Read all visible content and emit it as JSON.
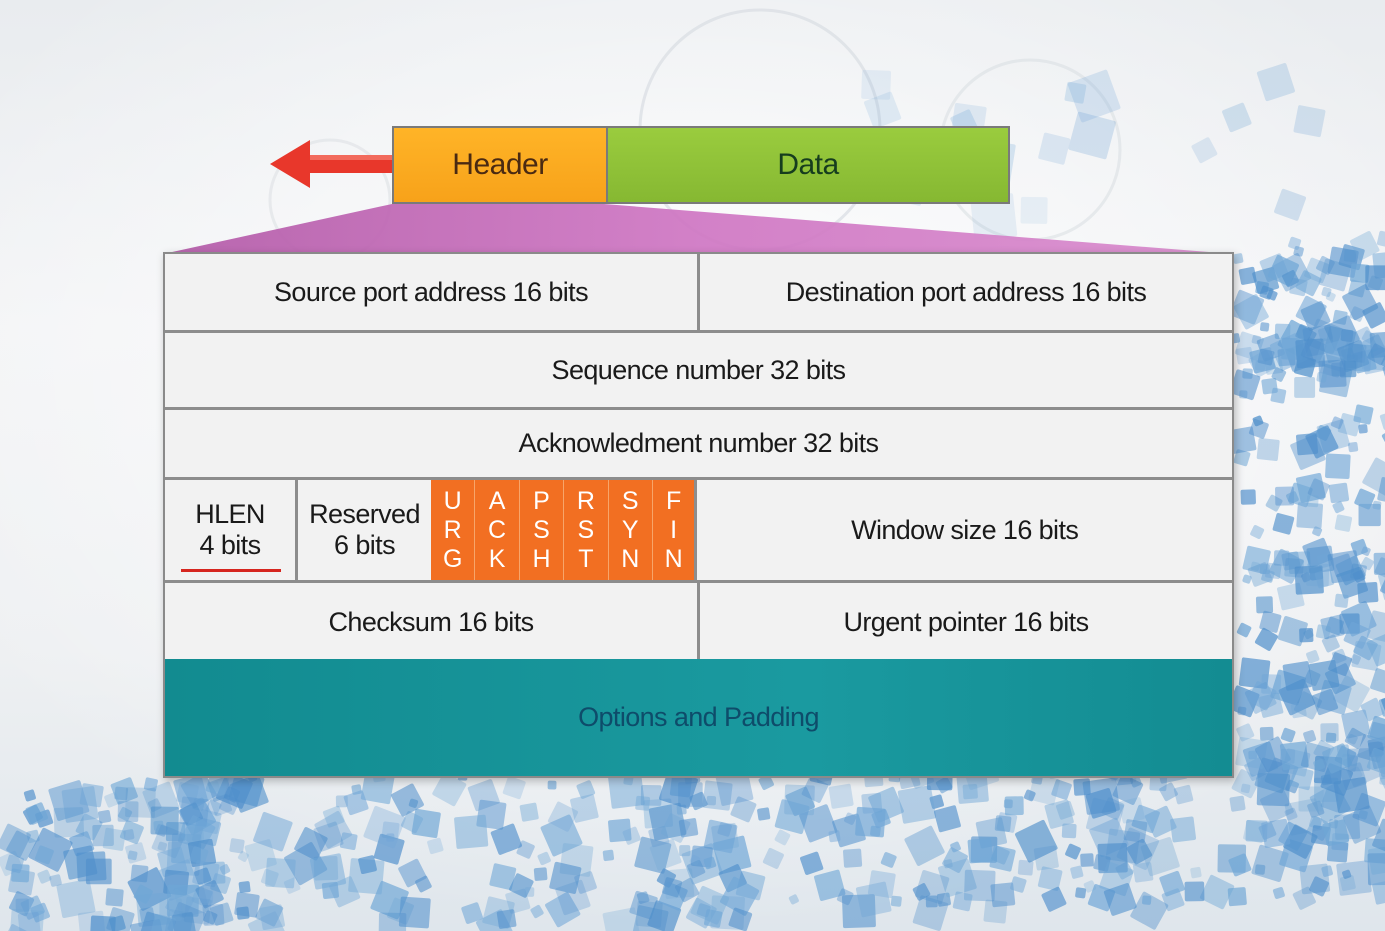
{
  "packet": {
    "header_label": "Header",
    "data_label": "Data"
  },
  "tcp_header": {
    "source_port": "Source port address 16 bits",
    "destination_port": "Destination port address 16 bits",
    "sequence_number": "Sequence number 32 bits",
    "acknowledgment_number": "Acknowledment number 32 bits",
    "hlen": {
      "line1": "HLEN",
      "line2": "4 bits"
    },
    "reserved": {
      "line1": "Reserved",
      "line2": "6 bits"
    },
    "flags": [
      [
        "U",
        "R",
        "G"
      ],
      [
        "A",
        "C",
        "K"
      ],
      [
        "P",
        "S",
        "H"
      ],
      [
        "R",
        "S",
        "T"
      ],
      [
        "S",
        "Y",
        "N"
      ],
      [
        "F",
        "I",
        "N"
      ]
    ],
    "window_size": "Window size 16 bits",
    "checksum": "Checksum 16 bits",
    "urgent_pointer": "Urgent pointer 16 bits",
    "options": "Options and Padding"
  },
  "colors": {
    "header_segment": "#f7a21a",
    "data_segment": "#8cbd36",
    "arrow": "#e8372b",
    "funnel": "#c46bb8",
    "flags": "#f26f22",
    "options": "#1a9aa0",
    "hlen_underline": "#d6261f"
  }
}
